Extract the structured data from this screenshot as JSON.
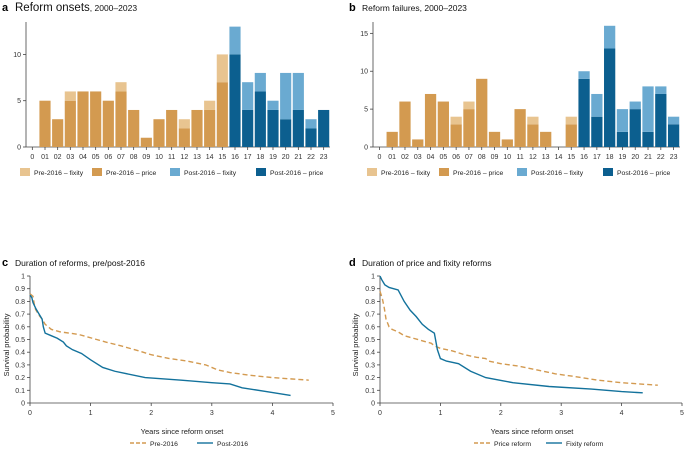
{
  "colors": {
    "pre_fixity": "#e8c490",
    "pre_price": "#d39a50",
    "post_fixity": "#6aaad1",
    "post_price": "#0c5f8f",
    "line_pre": "#d39a50",
    "line_post": "#13729c"
  },
  "chart_data": [
    {
      "id": "a",
      "type": "bar",
      "letter": "a",
      "title_main": "Reform onsets",
      "title_suffix": ", 2000–2023",
      "stacked": true,
      "categories": [
        "0",
        "01",
        "02",
        "03",
        "04",
        "05",
        "06",
        "07",
        "08",
        "09",
        "10",
        "11",
        "12",
        "13",
        "14",
        "15",
        "16",
        "17",
        "18",
        "19",
        "20",
        "21",
        "22",
        "23"
      ],
      "ylim": [
        0,
        13.5
      ],
      "yticks": [
        0,
        5,
        10
      ],
      "series": [
        {
          "name": "Pre-2016 – price",
          "values": [
            0,
            5,
            3,
            5,
            6,
            6,
            5,
            6,
            4,
            1,
            3,
            4,
            2,
            4,
            4,
            7,
            0,
            0,
            0,
            0,
            0,
            0,
            0,
            0
          ]
        },
        {
          "name": "Pre-2016 – fixity",
          "values": [
            0,
            0,
            0,
            1,
            0,
            0,
            0,
            1,
            0,
            0,
            0,
            0,
            1,
            0,
            1,
            3,
            0,
            0,
            0,
            0,
            0,
            0,
            0,
            0
          ]
        },
        {
          "name": "Post-2016 – price",
          "values": [
            0,
            0,
            0,
            0,
            0,
            0,
            0,
            0,
            0,
            0,
            0,
            0,
            0,
            0,
            0,
            0,
            10,
            4,
            6,
            4,
            3,
            4,
            2,
            4
          ]
        },
        {
          "name": "Post-2016 – fixity",
          "values": [
            0,
            0,
            0,
            0,
            0,
            0,
            0,
            0,
            0,
            0,
            0,
            0,
            0,
            0,
            0,
            0,
            3,
            3,
            2,
            1,
            5,
            4,
            1,
            0
          ]
        }
      ],
      "legend": [
        "Pre-2016 – fixity",
        "Pre-2016 – price",
        "Post-2016 – fixity",
        "Post-2016 – price"
      ]
    },
    {
      "id": "b",
      "type": "bar",
      "letter": "b",
      "title_main": "Reform failures, 2000–2023",
      "title_suffix": "",
      "stacked": true,
      "categories": [
        "0",
        "01",
        "02",
        "03",
        "04",
        "05",
        "06",
        "07",
        "08",
        "09",
        "10",
        "11",
        "12",
        "13",
        "14",
        "15",
        "16",
        "17",
        "18",
        "19",
        "20",
        "21",
        "22",
        "23"
      ],
      "ylim": [
        0,
        16.5
      ],
      "yticks": [
        0,
        5,
        10,
        15
      ],
      "series": [
        {
          "name": "Pre-2016 – price",
          "values": [
            0,
            2,
            6,
            1,
            7,
            6,
            3,
            5,
            9,
            2,
            1,
            5,
            3,
            2,
            0,
            3,
            0,
            0,
            0,
            0,
            0,
            0,
            0,
            0
          ]
        },
        {
          "name": "Pre-2016 – fixity",
          "values": [
            0,
            0,
            0,
            0,
            0,
            0,
            1,
            1,
            0,
            0,
            0,
            0,
            1,
            0,
            0,
            1,
            0,
            0,
            0,
            0,
            0,
            0,
            0,
            0
          ]
        },
        {
          "name": "Post-2016 – price",
          "values": [
            0,
            0,
            0,
            0,
            0,
            0,
            0,
            0,
            0,
            0,
            0,
            0,
            0,
            0,
            0,
            0,
            9,
            4,
            13,
            2,
            5,
            2,
            7,
            3
          ]
        },
        {
          "name": "Post-2016 – fixity",
          "values": [
            0,
            0,
            0,
            0,
            0,
            0,
            0,
            0,
            0,
            0,
            0,
            0,
            0,
            0,
            0,
            0,
            1,
            3,
            3,
            3,
            1,
            6,
            1,
            1
          ]
        }
      ],
      "legend": [
        "Pre-2016 – fixity",
        "Pre-2016 – price",
        "Post-2016 – fixity",
        "Post-2016 – price"
      ]
    },
    {
      "id": "c",
      "type": "line",
      "letter": "c",
      "title_main": "Duration of reforms, pre/post-2016",
      "xlabel": "Years since reform onset",
      "ylabel": "Survival probability",
      "xlim": [
        0,
        5
      ],
      "ylim": [
        0,
        1.0
      ],
      "xticks": [
        0,
        1,
        2,
        3,
        4,
        5
      ],
      "yticks": [
        0,
        0.1,
        0.2,
        0.3,
        0.4,
        0.5,
        0.6,
        0.7,
        0.8,
        0.9,
        1.0
      ],
      "series": [
        {
          "name": "Pre-2016",
          "dashed": true,
          "x": [
            0,
            0.05,
            0.08,
            0.1,
            0.15,
            0.2,
            0.25,
            0.3,
            0.35,
            0.5,
            0.8,
            0.95,
            1.1,
            1.25,
            1.5,
            1.8,
            2.0,
            2.3,
            2.6,
            2.9,
            3.1,
            3.3,
            3.6,
            4.0,
            4.3,
            4.6
          ],
          "y": [
            0.86,
            0.84,
            0.75,
            0.73,
            0.69,
            0.66,
            0.62,
            0.6,
            0.58,
            0.56,
            0.54,
            0.52,
            0.5,
            0.48,
            0.45,
            0.41,
            0.38,
            0.35,
            0.33,
            0.3,
            0.26,
            0.24,
            0.22,
            0.2,
            0.19,
            0.18
          ]
        },
        {
          "name": "Post-2016",
          "dashed": false,
          "x": [
            0,
            0.03,
            0.05,
            0.1,
            0.15,
            0.2,
            0.22,
            0.25,
            0.35,
            0.45,
            0.55,
            0.6,
            0.7,
            0.85,
            1.0,
            1.2,
            1.4,
            1.9,
            2.5,
            3.0,
            3.3,
            3.5,
            3.9,
            4.3
          ],
          "y": [
            0.85,
            0.83,
            0.79,
            0.74,
            0.7,
            0.66,
            0.6,
            0.55,
            0.53,
            0.51,
            0.48,
            0.45,
            0.42,
            0.39,
            0.34,
            0.28,
            0.25,
            0.2,
            0.18,
            0.16,
            0.15,
            0.12,
            0.09,
            0.06
          ]
        }
      ],
      "legend": [
        "Pre-2016",
        "Post-2016"
      ]
    },
    {
      "id": "d",
      "type": "line",
      "letter": "d",
      "title_main": "Duration of price and fixity reforms",
      "xlabel": "Years since reform onset",
      "ylabel": "Survival probability",
      "xlim": [
        0,
        5
      ],
      "ylim": [
        0,
        1.0
      ],
      "xticks": [
        0,
        1,
        2,
        3,
        4,
        5
      ],
      "yticks": [
        0,
        0.1,
        0.2,
        0.3,
        0.4,
        0.5,
        0.6,
        0.7,
        0.8,
        0.9,
        1.0
      ],
      "series": [
        {
          "name": "Price reform",
          "dashed": true,
          "x": [
            0,
            0.04,
            0.07,
            0.1,
            0.15,
            0.2,
            0.3,
            0.4,
            0.55,
            0.7,
            0.85,
            0.9,
            1.0,
            1.2,
            1.4,
            1.6,
            1.75,
            1.8,
            2.0,
            2.3,
            2.6,
            2.9,
            3.2,
            3.6,
            4.0,
            4.6
          ],
          "y": [
            0.88,
            0.82,
            0.75,
            0.66,
            0.6,
            0.58,
            0.56,
            0.53,
            0.51,
            0.49,
            0.47,
            0.45,
            0.43,
            0.41,
            0.38,
            0.36,
            0.35,
            0.33,
            0.31,
            0.29,
            0.26,
            0.23,
            0.21,
            0.18,
            0.16,
            0.14
          ]
        },
        {
          "name": "Fixity reform",
          "dashed": false,
          "x": [
            0,
            0.03,
            0.08,
            0.15,
            0.3,
            0.4,
            0.5,
            0.6,
            0.7,
            0.8,
            0.9,
            0.95,
            1.0,
            1.1,
            1.3,
            1.5,
            1.75,
            2.2,
            2.8,
            3.5,
            4.0,
            4.35
          ],
          "y": [
            1.0,
            0.97,
            0.93,
            0.91,
            0.89,
            0.8,
            0.73,
            0.68,
            0.62,
            0.58,
            0.55,
            0.42,
            0.35,
            0.33,
            0.31,
            0.25,
            0.2,
            0.16,
            0.13,
            0.11,
            0.09,
            0.08
          ]
        }
      ],
      "legend": [
        "Price reform",
        "Fixity reform"
      ]
    }
  ]
}
